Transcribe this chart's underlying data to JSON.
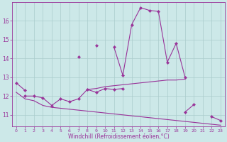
{
  "xlabel": "Windchill (Refroidissement éolien,°C)",
  "background_color": "#cce8e8",
  "line_color": "#993399",
  "grid_color": "#aacccc",
  "x": [
    0,
    1,
    2,
    3,
    4,
    5,
    6,
    7,
    8,
    9,
    10,
    11,
    12,
    13,
    14,
    15,
    16,
    17,
    18,
    19,
    20,
    21,
    22,
    23
  ],
  "line1_y": [
    12.7,
    12.3,
    null,
    null,
    null,
    null,
    null,
    14.1,
    null,
    14.7,
    null,
    14.6,
    13.1,
    15.8,
    16.7,
    16.55,
    16.5,
    13.8,
    14.8,
    13.0,
    null,
    null,
    null,
    null
  ],
  "line2_y": [
    12.5,
    null,
    null,
    12.0,
    null,
    null,
    null,
    null,
    12.35,
    12.4,
    12.5,
    12.55,
    12.6,
    12.65,
    12.7,
    12.75,
    12.8,
    12.85,
    12.85,
    12.9,
    null,
    null,
    null,
    null
  ],
  "line3_y": [
    null,
    12.0,
    12.0,
    11.9,
    11.5,
    11.85,
    11.7,
    11.85,
    12.35,
    12.2,
    12.4,
    12.35,
    12.4,
    null,
    null,
    null,
    null,
    null,
    null,
    11.15,
    11.55,
    null,
    10.9,
    10.7
  ],
  "line4_y": [
    12.2,
    11.85,
    11.75,
    11.5,
    11.4,
    11.35,
    11.3,
    11.25,
    11.2,
    11.15,
    11.1,
    11.05,
    11.0,
    10.95,
    10.9,
    10.85,
    10.8,
    10.75,
    10.7,
    10.65,
    10.6,
    10.55,
    10.5,
    10.45
  ],
  "ylim": [
    10.4,
    17.0
  ],
  "yticks": [
    11,
    12,
    13,
    14,
    15,
    16
  ],
  "xticks": [
    0,
    1,
    2,
    3,
    4,
    5,
    6,
    7,
    8,
    9,
    10,
    11,
    12,
    13,
    14,
    15,
    16,
    17,
    18,
    19,
    20,
    21,
    22,
    23
  ]
}
